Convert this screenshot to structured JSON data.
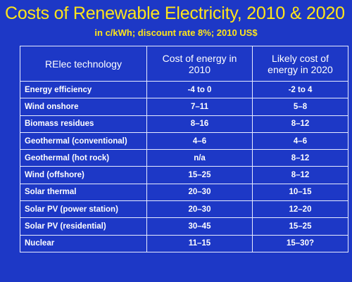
{
  "slide": {
    "title": "Costs of Renewable Electricity, 2010 & 2020",
    "subtitle": "in c/kWh;  discount rate 8%; 2010 US$",
    "colors": {
      "background": "#1d38c6",
      "title": "#ffe51a",
      "table_text": "#ffffff",
      "table_border": "#e8ecff"
    }
  },
  "table": {
    "headers": {
      "technology": "RElec technology",
      "cost_2010": "Cost of energy in 2010",
      "cost_2020": "Likely cost of energy in 2020"
    },
    "rows": [
      {
        "technology": "Energy efficiency",
        "cost_2010": "-4 to 0",
        "cost_2020": "-2 to 4"
      },
      {
        "technology": "Wind onshore",
        "cost_2010": "7–11",
        "cost_2020": "5–8"
      },
      {
        "technology": "Biomass residues",
        "cost_2010": "8–16",
        "cost_2020": "8–12"
      },
      {
        "technology": "Geothermal (conventional)",
        "cost_2010": "4–6",
        "cost_2020": "4–6"
      },
      {
        "technology": "Geothermal (hot rock)",
        "cost_2010": "n/a",
        "cost_2020": "8–12"
      },
      {
        "technology": "Wind (offshore)",
        "cost_2010": "15–25",
        "cost_2020": "8–12"
      },
      {
        "technology": "Solar thermal",
        "cost_2010": "20–30",
        "cost_2020": "10–15"
      },
      {
        "technology": "Solar PV (power station)",
        "cost_2010": "20–30",
        "cost_2020": "12–20"
      },
      {
        "technology": "Solar PV (residential)",
        "cost_2010": "30–45",
        "cost_2020": "15–25"
      },
      {
        "technology": "Nuclear",
        "cost_2010": "11–15",
        "cost_2020": "15–30?"
      }
    ]
  }
}
